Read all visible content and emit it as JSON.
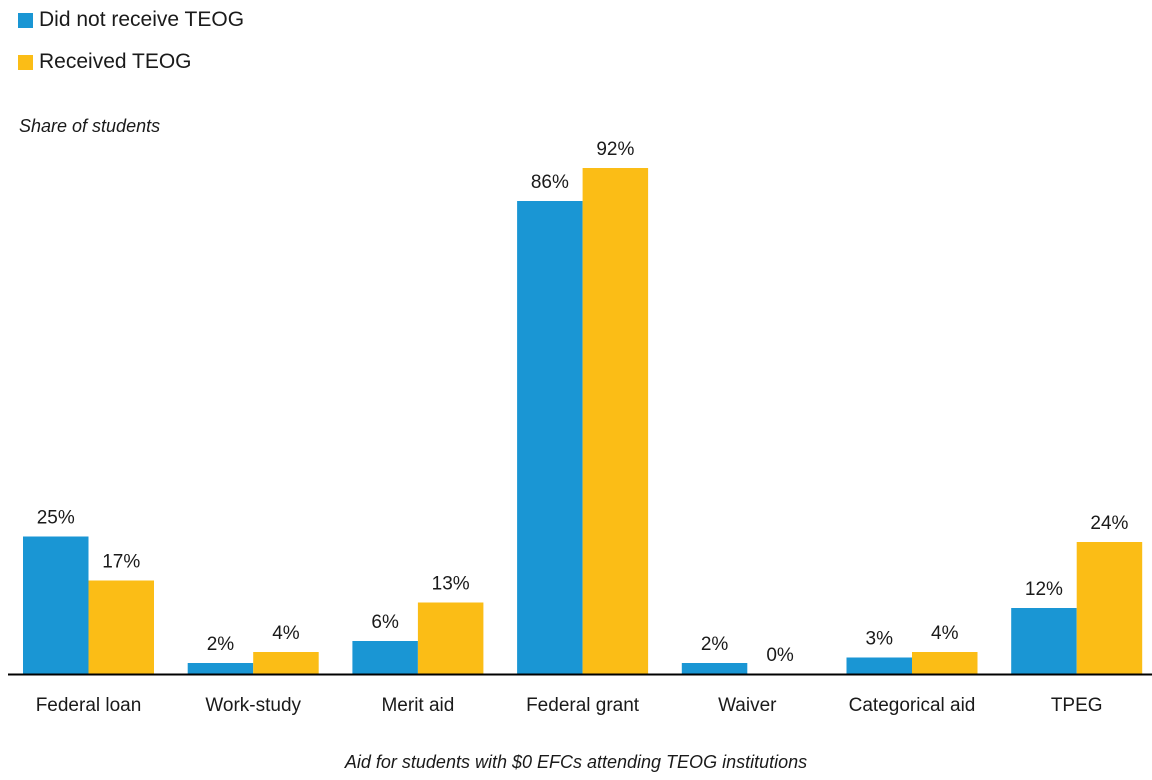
{
  "chart_data": {
    "type": "bar",
    "ylabel": "Share of students",
    "xlabel": "Aid for students with $0 EFCs attending TEOG institutions",
    "categories": [
      "Federal loan",
      "Work-study",
      "Merit aid",
      "Federal grant",
      "Waiver",
      "Categorical aid",
      "TPEG"
    ],
    "series": [
      {
        "name": "Did not receive TEOG",
        "color": "#1a96d4",
        "values": [
          25,
          2,
          6,
          86,
          2,
          3,
          12
        ],
        "labels": [
          "25%",
          "2%",
          "6%",
          "86%",
          "2%",
          "3%",
          "12%"
        ]
      },
      {
        "name": "Received TEOG",
        "color": "#fbbd16",
        "values": [
          17,
          4,
          13,
          92,
          0,
          4,
          24
        ],
        "labels": [
          "17%",
          "4%",
          "13%",
          "92%",
          "0%",
          "4%",
          "24%"
        ]
      }
    ],
    "ylim": [
      0,
      100
    ],
    "grid": false,
    "legend_position": "top-left",
    "axis_color": "#000000"
  }
}
